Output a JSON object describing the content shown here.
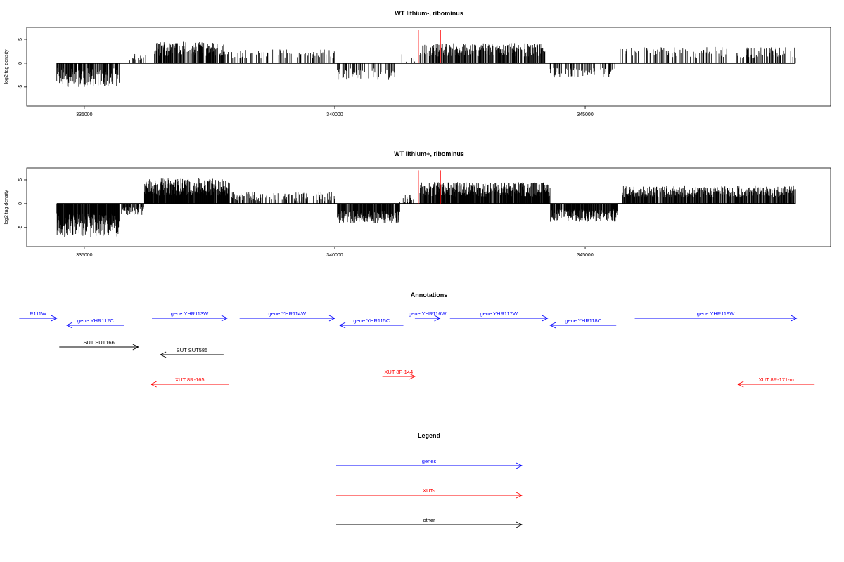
{
  "colors": {
    "gene": "#0000ff",
    "xut": "#ff0000",
    "other": "#000000",
    "highlight": "#ff0000",
    "density": "#000000"
  },
  "chart_data": [
    {
      "type": "bar",
      "title": "WT lithium-, ribominus",
      "ylabel": "log2 tag density",
      "xlim": [
        333850,
        349900
      ],
      "ylim": [
        -9,
        7.5
      ],
      "xticks": [
        335000,
        340000,
        345000
      ],
      "yticks": [
        -5,
        0,
        5
      ],
      "grid": false,
      "highlight_positions": [
        341670,
        342110
      ],
      "highlight_height": 7,
      "regions": [
        {
          "start": 334450,
          "end": 335700,
          "mean": -3,
          "spread": 2,
          "density": 0.7
        },
        {
          "start": 335900,
          "end": 336250,
          "mean": 1.5,
          "spread": 1,
          "density": 0.15
        },
        {
          "start": 336400,
          "end": 337800,
          "mean": 3,
          "spread": 1.5,
          "density": 0.6
        },
        {
          "start": 337800,
          "end": 340000,
          "mean": 2,
          "spread": 1,
          "density": 0.2
        },
        {
          "start": 340050,
          "end": 341200,
          "mean": -2.3,
          "spread": 1.2,
          "density": 0.35
        },
        {
          "start": 341200,
          "end": 341600,
          "mean": 1,
          "spread": 1,
          "density": 0.1
        },
        {
          "start": 341700,
          "end": 344200,
          "mean": 2.8,
          "spread": 1.4,
          "density": 0.6
        },
        {
          "start": 344300,
          "end": 345600,
          "mean": -2,
          "spread": 1,
          "density": 0.3
        },
        {
          "start": 345700,
          "end": 349200,
          "mean": 2.2,
          "spread": 1.2,
          "density": 0.25
        }
      ]
    },
    {
      "type": "bar",
      "title": "WT lithium+, ribominus",
      "ylabel": "log2 tag density",
      "xlim": [
        333850,
        349900
      ],
      "ylim": [
        -9,
        7.5
      ],
      "xticks": [
        335000,
        340000,
        345000
      ],
      "yticks": [
        -5,
        0,
        5
      ],
      "grid": false,
      "highlight_positions": [
        341670,
        342110
      ],
      "highlight_height": 7,
      "regions": [
        {
          "start": 334450,
          "end": 335700,
          "mean": -4.5,
          "spread": 2.5,
          "density": 0.95
        },
        {
          "start": 335700,
          "end": 336200,
          "mean": -1.5,
          "spread": 1,
          "density": 0.5
        },
        {
          "start": 336200,
          "end": 337900,
          "mean": 3.5,
          "spread": 1.8,
          "density": 0.95
        },
        {
          "start": 337900,
          "end": 340000,
          "mean": 1.5,
          "spread": 1,
          "density": 0.35
        },
        {
          "start": 340050,
          "end": 341300,
          "mean": -2.8,
          "spread": 1.3,
          "density": 0.8
        },
        {
          "start": 341300,
          "end": 341650,
          "mean": 1,
          "spread": 1,
          "density": 0.3
        },
        {
          "start": 341700,
          "end": 344300,
          "mean": 3,
          "spread": 1.5,
          "density": 0.85
        },
        {
          "start": 344300,
          "end": 345650,
          "mean": -2.5,
          "spread": 1.3,
          "density": 0.8
        },
        {
          "start": 345750,
          "end": 349200,
          "mean": 2.5,
          "spread": 1.2,
          "density": 0.7
        }
      ]
    }
  ],
  "annotations": {
    "title": "Annotations",
    "items": [
      {
        "label": "R111W",
        "type": "gene",
        "start": 333700,
        "end": 334450,
        "strand": "+",
        "row": 0
      },
      {
        "label": "gene YHR112C",
        "type": "gene",
        "start": 334650,
        "end": 335800,
        "strand": "-",
        "row": 1
      },
      {
        "label": "gene YHR113W",
        "type": "gene",
        "start": 336350,
        "end": 337850,
        "strand": "+",
        "row": 0
      },
      {
        "label": "gene YHR114W",
        "type": "gene",
        "start": 338100,
        "end": 340000,
        "strand": "+",
        "row": 0
      },
      {
        "label": "gene YHR115C",
        "type": "gene",
        "start": 340100,
        "end": 341370,
        "strand": "-",
        "row": 1
      },
      {
        "label": "gene YHR116W",
        "type": "gene",
        "start": 341600,
        "end": 342100,
        "strand": "+",
        "row": 0
      },
      {
        "label": "gene YHR117W",
        "type": "gene",
        "start": 342300,
        "end": 344250,
        "strand": "+",
        "row": 0
      },
      {
        "label": "gene YHR118C",
        "type": "gene",
        "start": 344300,
        "end": 345620,
        "strand": "-",
        "row": 1
      },
      {
        "label": "gene YHR119W",
        "type": "gene",
        "start": 345990,
        "end": 349220,
        "strand": "+",
        "row": 0
      },
      {
        "label": "SUT SUT166",
        "type": "other",
        "start": 334500,
        "end": 336080,
        "strand": "+",
        "row": 2
      },
      {
        "label": "SUT SUT585",
        "type": "other",
        "start": 336520,
        "end": 337780,
        "strand": "-",
        "row": 3
      },
      {
        "label": "XUT 8F-144",
        "type": "xut",
        "start": 340950,
        "end": 341600,
        "strand": "+",
        "row": 4
      },
      {
        "label": "XUT 8R-165",
        "type": "xut",
        "start": 336330,
        "end": 337880,
        "strand": "-",
        "row": 5
      },
      {
        "label": "XUT 8R-171-m",
        "type": "xut",
        "start": 348050,
        "end": 349580,
        "strand": "-",
        "row": 5
      }
    ]
  },
  "legend": {
    "title": "Legend",
    "items": [
      {
        "label": "genes",
        "type": "gene"
      },
      {
        "label": "XUTs",
        "type": "xut"
      },
      {
        "label": "other",
        "type": "other"
      }
    ]
  }
}
